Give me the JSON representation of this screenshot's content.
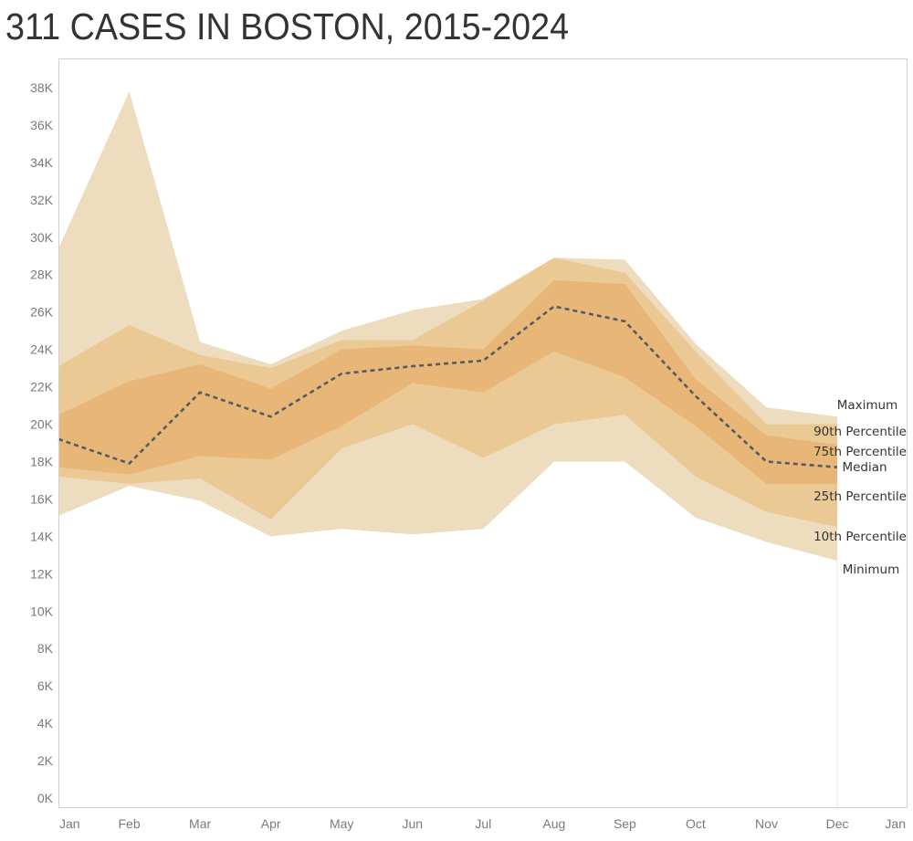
{
  "title": "311 CASES IN BOSTON, 2015-2024",
  "chart_data": {
    "type": "area",
    "title": "311 CASES IN BOSTON, 2015-2024",
    "xlabel": "",
    "ylabel": "",
    "categories": [
      "Jan",
      "Feb",
      "Mar",
      "Apr",
      "May",
      "Jun",
      "Jul",
      "Aug",
      "Sep",
      "Oct",
      "Nov",
      "Dec"
    ],
    "x_tick_labels": [
      "Jan",
      "Feb",
      "Mar",
      "Apr",
      "May",
      "Jun",
      "Jul",
      "Aug",
      "Sep",
      "Oct",
      "Nov",
      "Dec",
      "Jan"
    ],
    "y_tick_labels": [
      "0K",
      "2K",
      "4K",
      "6K",
      "8K",
      "10K",
      "12K",
      "14K",
      "16K",
      "18K",
      "20K",
      "22K",
      "24K",
      "26K",
      "28K",
      "30K",
      "32K",
      "34K",
      "36K",
      "38K"
    ],
    "y_ticks": [
      0,
      2000,
      4000,
      6000,
      8000,
      10000,
      12000,
      14000,
      16000,
      18000,
      20000,
      22000,
      24000,
      26000,
      28000,
      30000,
      32000,
      34000,
      36000,
      38000
    ],
    "ylim": [
      0,
      38000
    ],
    "grid": false,
    "legend": "inline-right",
    "series": [
      {
        "name": "Maximum",
        "label": "Maximum",
        "values": [
          29400,
          37800,
          24400,
          23200,
          25000,
          26100,
          26700,
          28900,
          28800,
          24300,
          20900,
          20400
        ]
      },
      {
        "name": "90th Percentile",
        "label": "90th Percentile",
        "values": [
          23100,
          25300,
          23700,
          23000,
          24500,
          24500,
          26600,
          28900,
          28100,
          23900,
          20000,
          20000
        ]
      },
      {
        "name": "75th Percentile",
        "label": "75th Percentile",
        "values": [
          20500,
          22300,
          23200,
          21900,
          24000,
          24200,
          24000,
          27700,
          27500,
          22400,
          19400,
          18900
        ]
      },
      {
        "name": "Median",
        "label": "Median",
        "values": [
          19200,
          17900,
          21700,
          20400,
          22700,
          23100,
          23400,
          26300,
          25500,
          21500,
          18000,
          17700
        ]
      },
      {
        "name": "25th Percentile",
        "label": "25th Percentile",
        "values": [
          17700,
          17300,
          18300,
          18100,
          19900,
          22200,
          21700,
          23900,
          22500,
          19900,
          16800,
          16800
        ]
      },
      {
        "name": "10th Percentile",
        "label": "10th Percentile",
        "values": [
          17200,
          16800,
          17100,
          14900,
          18700,
          20000,
          18200,
          20000,
          20500,
          17200,
          15300,
          14500
        ]
      },
      {
        "name": "Minimum",
        "label": "Minimum",
        "values": [
          15100,
          16700,
          15900,
          14000,
          14400,
          14100,
          14400,
          18000,
          18000,
          15000,
          13700,
          12700
        ]
      }
    ],
    "bands": [
      {
        "name": "min-max",
        "from": "Minimum",
        "to": "Maximum",
        "color": "#eedcbf"
      },
      {
        "name": "p10-p90",
        "from": "10th Percentile",
        "to": "90th Percentile",
        "color": "#ebc995"
      },
      {
        "name": "p25-p75",
        "from": "25th Percentile",
        "to": "75th Percentile",
        "color": "#e8b677"
      }
    ],
    "median_line": {
      "series": "Median",
      "style": "dashed",
      "color": "#555b66"
    }
  }
}
